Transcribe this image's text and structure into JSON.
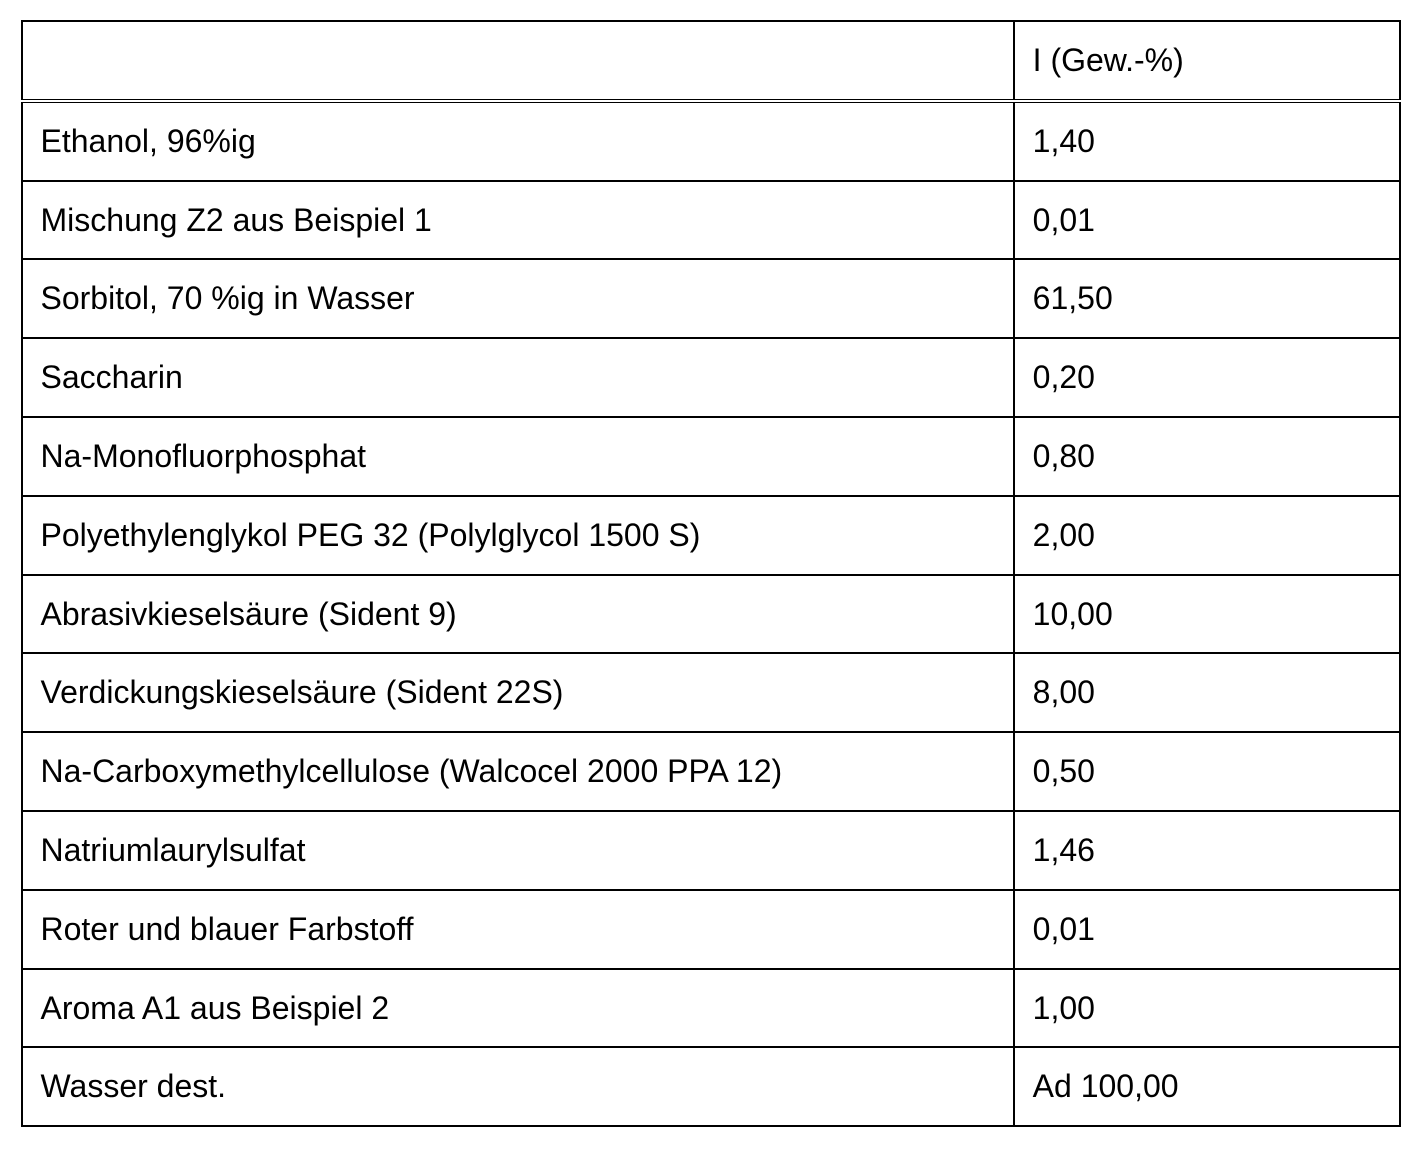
{
  "table": {
    "type": "table",
    "background_color": "#ffffff",
    "border_color": "#000000",
    "border_width": 2,
    "text_color": "#000000",
    "font_size_pt": 24,
    "font_family": "Arial",
    "columns": [
      {
        "header": "",
        "width_pct": 72,
        "align": "left"
      },
      {
        "header": "I (Gew.-%)",
        "width_pct": 28,
        "align": "left"
      }
    ],
    "rows": [
      {
        "label": "Ethanol, 96%ig",
        "value": "1,40"
      },
      {
        "label": "Mischung Z2 aus Beispiel 1",
        "value": "0,01"
      },
      {
        "label": "Sorbitol, 70 %ig in Wasser",
        "value": "61,50"
      },
      {
        "label": "Saccharin",
        "value": "0,20"
      },
      {
        "label": "Na-Monofluorphosphat",
        "value": "0,80"
      },
      {
        "label": "Polyethylenglykol PEG 32 (Polylglycol 1500 S)",
        "value": "2,00"
      },
      {
        "label": "Abrasivkieselsäure (Sident 9)",
        "value": "10,00"
      },
      {
        "label": "Verdickungskieselsäure (Sident 22S)",
        "value": "8,00"
      },
      {
        "label": "Na-Carboxymethylcellulose (Walcocel 2000 PPA 12)",
        "value": "0,50"
      },
      {
        "label": "Natriumlaurylsulfat",
        "value": "1,46"
      },
      {
        "label": "Roter und blauer Farbstoff",
        "value": "0,01"
      },
      {
        "label": "Aroma A1 aus Beispiel 2",
        "value": "1,00"
      },
      {
        "label": "Wasser dest.",
        "value": "Ad 100,00"
      }
    ]
  }
}
